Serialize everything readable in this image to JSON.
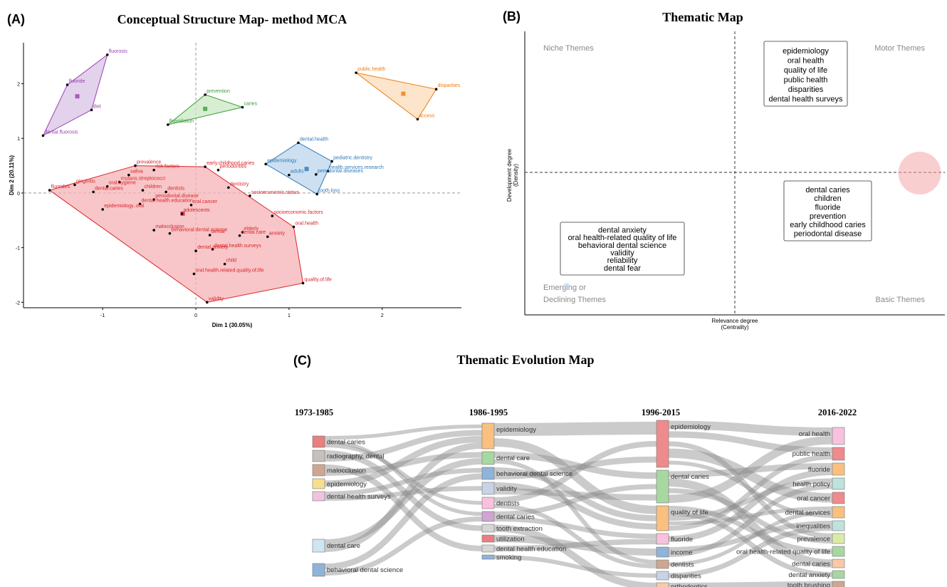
{
  "panels": {
    "a": {
      "letter": "(A)",
      "title": "Conceptual Structure Map- method MCA",
      "xlabel": "Dim 1 (30.05%)",
      "ylabel": "Dim 2 (20.11%)",
      "xticks": [
        "-1",
        "0",
        "1",
        "2"
      ],
      "yticks": [
        "2",
        "1",
        "0",
        "-1",
        "-2"
      ]
    },
    "b": {
      "letter": "(B)",
      "title": "Thematic Map",
      "xlabel_1": "Relevance degree",
      "xlabel_2": "(Centrality)",
      "ylabel_1": "Development degree",
      "ylabel_2": "(Density)",
      "quadrants": {
        "niche": "Niche Themes",
        "motor": "Motor Themes",
        "emerging_1": "Emerging or",
        "emerging_2": "Declining Themes",
        "basic": "Basic Themes"
      }
    },
    "c": {
      "letter": "(C)",
      "title": "Thematic Evolution Map"
    }
  },
  "chart_data": [
    {
      "type": "scatter",
      "title": "Conceptual Structure Map- method MCA",
      "xlabel": "Dim 1 (30.05%)",
      "ylabel": "Dim 2 (20.11%)",
      "xlim": [
        -1.85,
        2.85
      ],
      "ylim": [
        -2.1,
        2.75
      ],
      "clusters": [
        {
          "color": "#9a40b0",
          "fill": "#d9c3e6",
          "points": [
            {
              "label": "fluorosis",
              "x": -0.95,
              "y": 2.53
            },
            {
              "label": "fluoride",
              "x": -1.38,
              "y": 1.98
            },
            {
              "label": "diet",
              "x": -1.12,
              "y": 1.52
            },
            {
              "label": "dental.fluorosis",
              "x": -1.64,
              "y": 1.05
            }
          ],
          "hull": [
            [
              -0.95,
              2.53
            ],
            [
              -1.38,
              1.98
            ],
            [
              -1.64,
              1.05
            ],
            [
              -1.12,
              1.52
            ]
          ]
        },
        {
          "color": "#3a9e38",
          "fill": "#c9e8c3",
          "points": [
            {
              "label": "prevention",
              "x": 0.1,
              "y": 1.8
            },
            {
              "label": "caries",
              "x": 0.5,
              "y": 1.57
            },
            {
              "label": "fluoridation",
              "x": -0.3,
              "y": 1.25
            }
          ],
          "hull": [
            [
              0.1,
              1.8
            ],
            [
              0.5,
              1.57
            ],
            [
              -0.3,
              1.25
            ]
          ]
        },
        {
          "color": "#ea7d14",
          "fill": "#fbdcb8",
          "points": [
            {
              "label": "public.health",
              "x": 1.72,
              "y": 2.2
            },
            {
              "label": "disparities",
              "x": 2.58,
              "y": 1.9
            },
            {
              "label": "access",
              "x": 2.38,
              "y": 1.35
            }
          ],
          "hull": [
            [
              1.72,
              2.2
            ],
            [
              2.58,
              1.9
            ],
            [
              2.38,
              1.35
            ]
          ]
        },
        {
          "color": "#2e78b7",
          "fill": "#bcd5ec",
          "points": [
            {
              "label": "dental.health",
              "x": 1.1,
              "y": 0.92
            },
            {
              "label": "pediatric.dentistry",
              "x": 1.46,
              "y": 0.58
            },
            {
              "label": "epidemiology",
              "x": 0.75,
              "y": 0.53
            },
            {
              "label": "health.services.research",
              "x": 1.42,
              "y": 0.4
            },
            {
              "label": "adults",
              "x": 1.0,
              "y": 0.33
            },
            {
              "label": "periodontal.diseases",
              "x": 1.29,
              "y": 0.34
            },
            {
              "label": "tooth.loss",
              "x": 1.3,
              "y": -0.02
            }
          ],
          "hull": [
            [
              1.1,
              0.92
            ],
            [
              1.46,
              0.58
            ],
            [
              1.3,
              -0.02
            ],
            [
              0.75,
              0.53
            ]
          ]
        },
        {
          "color": "#d9242a",
          "fill": "#f5b3b5",
          "points": [
            {
              "label": "prevalence",
              "x": -0.65,
              "y": 0.5
            },
            {
              "label": "early.childhood.caries",
              "x": 0.1,
              "y": 0.48
            },
            {
              "label": "risk.factors",
              "x": -0.45,
              "y": 0.42
            },
            {
              "label": "periodontitis",
              "x": 0.24,
              "y": 0.42
            },
            {
              "label": "saliva",
              "x": -0.72,
              "y": 0.33
            },
            {
              "label": "mutans.streptococci",
              "x": -0.82,
              "y": 0.2
            },
            {
              "label": "gingivitis",
              "x": -1.3,
              "y": 0.15
            },
            {
              "label": "oral.hygiene",
              "x": -0.95,
              "y": 0.12
            },
            {
              "label": "dentistry",
              "x": 0.35,
              "y": 0.1
            },
            {
              "label": "children",
              "x": -0.57,
              "y": 0.05
            },
            {
              "label": "dentists",
              "x": -0.32,
              "y": 0.02
            },
            {
              "label": "dental.caries",
              "x": -1.1,
              "y": 0.02
            },
            {
              "label": "socioeconomic.status",
              "x": 0.58,
              "y": -0.05
            },
            {
              "label": "fluorides",
              "x": -1.57,
              "y": 0.05
            },
            {
              "label": "periodontal.disease",
              "x": -0.45,
              "y": -0.12
            },
            {
              "label": "dental.health.education",
              "x": -0.6,
              "y": -0.2
            },
            {
              "label": "oral.cancer",
              "x": -0.05,
              "y": -0.22
            },
            {
              "label": "epidemiology..oral",
              "x": -1.0,
              "y": -0.3
            },
            {
              "label": "adolescents",
              "x": -0.15,
              "y": -0.38
            },
            {
              "label": "socioeconomic.factors",
              "x": 0.82,
              "y": -0.42
            },
            {
              "label": "oral.health",
              "x": 1.05,
              "y": -0.62
            },
            {
              "label": "malocclusion",
              "x": -0.45,
              "y": -0.68
            },
            {
              "label": "elderly",
              "x": 0.5,
              "y": -0.72
            },
            {
              "label": "dental",
              "x": 0.15,
              "y": -0.77
            },
            {
              "label": "behavioral.dental.science",
              "x": -0.28,
              "y": -0.74
            },
            {
              "label": "dental.care",
              "x": 0.47,
              "y": -0.78
            },
            {
              "label": "anxiety",
              "x": 0.77,
              "y": -0.8
            },
            {
              "label": "dental.health.surveys",
              "x": 0.18,
              "y": -1.03
            },
            {
              "label": "dental.anxiety",
              "x": 0.0,
              "y": -1.06
            },
            {
              "label": "child",
              "x": 0.31,
              "y": -1.3
            },
            {
              "label": "oral.health.related.quality.of.life",
              "x": -0.02,
              "y": -1.48
            },
            {
              "label": "quality.of.life",
              "x": 1.15,
              "y": -1.65
            },
            {
              "label": "validity",
              "x": 0.12,
              "y": -2.0
            }
          ],
          "centroid": [
            -0.15,
            -0.38
          ],
          "hull": [
            [
              -1.57,
              0.05
            ],
            [
              -0.65,
              0.5
            ],
            [
              0.1,
              0.48
            ],
            [
              1.05,
              -0.62
            ],
            [
              1.15,
              -1.65
            ],
            [
              0.12,
              -2.0
            ]
          ]
        }
      ]
    },
    {
      "type": "scatter",
      "title": "Thematic Map",
      "xlabel": "Relevance degree (Centrality)",
      "ylabel": "Development degree (Density)",
      "themes": [
        {
          "color": "#a6d9a6",
          "x": 0.7,
          "y": 0.83,
          "words": [
            "epidemiology",
            "oral health",
            "quality of life",
            "public health",
            "disparities",
            "dental health surveys"
          ]
        },
        {
          "color": "#f4a5a8",
          "x": 0.94,
          "y": 0.5,
          "words": [
            "dental caries",
            "children",
            "fluoride",
            "prevention",
            "early childhood caries",
            "periodontal disease"
          ]
        },
        {
          "color": "#b9d2ec",
          "x": 0.1,
          "y": 0.1,
          "words": [
            "dental anxiety",
            "oral health-related quality of life",
            "behavioral dental science",
            "validity",
            "reliability",
            "dental fear"
          ]
        }
      ]
    },
    {
      "type": "sankey",
      "title": "Thematic Evolution Map",
      "periods": [
        "1973-1985",
        "1986-1995",
        "1996-2015",
        "2016-2022"
      ],
      "nodes": [
        [
          {
            "label": "dental caries",
            "color": "#e87f81",
            "w": 16
          },
          {
            "label": "radiography, dental",
            "color": "#c7c0bd",
            "w": 16
          },
          {
            "label": "malocclusion",
            "color": "#cfa791",
            "w": 16
          },
          {
            "label": "epidemiology",
            "color": "#f7de8f",
            "w": 14
          },
          {
            "label": "dental health surveys",
            "color": "#f1c2df",
            "w": 13
          },
          {
            "label": "dental care",
            "color": "#cfe6f1",
            "w": 18
          },
          {
            "label": "behavioral dental science",
            "color": "#8fb3d9",
            "w": 18
          }
        ],
        [
          {
            "label": "epidemiology",
            "color": "#f9c07f",
            "w": 36
          },
          {
            "label": "dental care",
            "color": "#a8d8a1",
            "w": 18
          },
          {
            "label": "behavioral dental science",
            "color": "#8fb3d9",
            "w": 17
          },
          {
            "label": "validity",
            "color": "#c7d3e7",
            "w": 17
          },
          {
            "label": "dentists",
            "color": "#f8c1dd",
            "w": 16
          },
          {
            "label": "dental caries",
            "color": "#cfa5d3",
            "w": 14
          },
          {
            "label": "tooth extraction",
            "color": "#d6d6d6",
            "w": 11
          },
          {
            "label": "utilization",
            "color": "#ea7d80",
            "w": 10
          },
          {
            "label": "dental health education",
            "color": "#d6d6d6",
            "w": 10
          },
          {
            "label": "smoking",
            "color": "#8fb3d9",
            "w": 6
          }
        ],
        [
          {
            "label": "epidemiology",
            "color": "#ef8a8d",
            "w": 66
          },
          {
            "label": "dental caries",
            "color": "#a8d8a1",
            "w": 46
          },
          {
            "label": "quality of life",
            "color": "#f9c07f",
            "w": 35
          },
          {
            "label": "fluoride",
            "color": "#f8c1dd",
            "w": 15
          },
          {
            "label": "income",
            "color": "#8fb3d9",
            "w": 14
          },
          {
            "label": "dentists",
            "color": "#cfa791",
            "w": 12
          },
          {
            "label": "disparities",
            "color": "#c7d3e7",
            "w": 12
          },
          {
            "label": "orthodontics",
            "color": "#f9c9a9",
            "w": 10
          }
        ],
        [
          {
            "label": "oral health",
            "color": "#f8c1dd",
            "w": 24
          },
          {
            "label": "public health",
            "color": "#ef8a8d",
            "w": 18
          },
          {
            "label": "fluoride",
            "color": "#f9c07f",
            "w": 17
          },
          {
            "label": "health policy",
            "color": "#bfe3dc",
            "w": 16
          },
          {
            "label": "oral cancer",
            "color": "#ef8a8d",
            "w": 16
          },
          {
            "label": "dental services",
            "color": "#f9c07f",
            "w": 16
          },
          {
            "label": "inequalities",
            "color": "#bfe3dc",
            "w": 14
          },
          {
            "label": "prevalence",
            "color": "#dceaa8",
            "w": 14
          },
          {
            "label": "oral health-related quality of life",
            "color": "#a8d8a1",
            "w": 14
          },
          {
            "label": "dental caries",
            "color": "#f9c9a9",
            "w": 12
          },
          {
            "label": "dental anxiety",
            "color": "#a8d8a1",
            "w": 11
          },
          {
            "label": "tooth brushing",
            "color": "#cfa791",
            "w": 10
          }
        ]
      ],
      "links": [
        [
          0,
          0,
          1,
          0
        ],
        [
          0,
          0,
          1,
          5
        ],
        [
          0,
          0,
          1,
          4
        ],
        [
          0,
          1,
          1,
          6
        ],
        [
          0,
          1,
          1,
          0
        ],
        [
          0,
          2,
          1,
          8
        ],
        [
          0,
          2,
          1,
          1
        ],
        [
          0,
          3,
          1,
          0
        ],
        [
          0,
          4,
          1,
          2
        ],
        [
          0,
          4,
          1,
          3
        ],
        [
          0,
          5,
          1,
          1
        ],
        [
          0,
          5,
          1,
          0
        ],
        [
          0,
          6,
          1,
          2
        ],
        [
          0,
          6,
          1,
          5
        ],
        [
          1,
          0,
          2,
          0
        ],
        [
          1,
          0,
          2,
          2
        ],
        [
          1,
          1,
          2,
          1
        ],
        [
          1,
          1,
          2,
          5
        ],
        [
          1,
          2,
          2,
          2
        ],
        [
          1,
          3,
          2,
          2
        ],
        [
          1,
          4,
          2,
          0
        ],
        [
          1,
          4,
          2,
          5
        ],
        [
          1,
          5,
          2,
          1
        ],
        [
          1,
          5,
          2,
          3
        ],
        [
          1,
          6,
          2,
          7
        ],
        [
          1,
          7,
          2,
          4
        ],
        [
          1,
          8,
          2,
          3
        ],
        [
          1,
          9,
          2,
          6
        ],
        [
          1,
          2,
          2,
          0
        ],
        [
          1,
          3,
          2,
          1
        ],
        [
          2,
          0,
          3,
          0
        ],
        [
          2,
          0,
          3,
          1
        ],
        [
          2,
          0,
          3,
          7
        ],
        [
          2,
          0,
          3,
          4
        ],
        [
          2,
          1,
          3,
          2
        ],
        [
          2,
          1,
          3,
          9
        ],
        [
          2,
          1,
          3,
          7
        ],
        [
          2,
          1,
          3,
          0
        ],
        [
          2,
          2,
          3,
          8
        ],
        [
          2,
          2,
          3,
          10
        ],
        [
          2,
          2,
          3,
          3
        ],
        [
          2,
          2,
          3,
          5
        ],
        [
          2,
          3,
          3,
          2
        ],
        [
          2,
          4,
          3,
          6
        ],
        [
          2,
          4,
          3,
          3
        ],
        [
          2,
          5,
          3,
          5
        ],
        [
          2,
          6,
          3,
          6
        ],
        [
          2,
          7,
          3,
          11
        ],
        [
          2,
          0,
          3,
          5
        ],
        [
          2,
          2,
          3,
          1
        ]
      ]
    }
  ]
}
